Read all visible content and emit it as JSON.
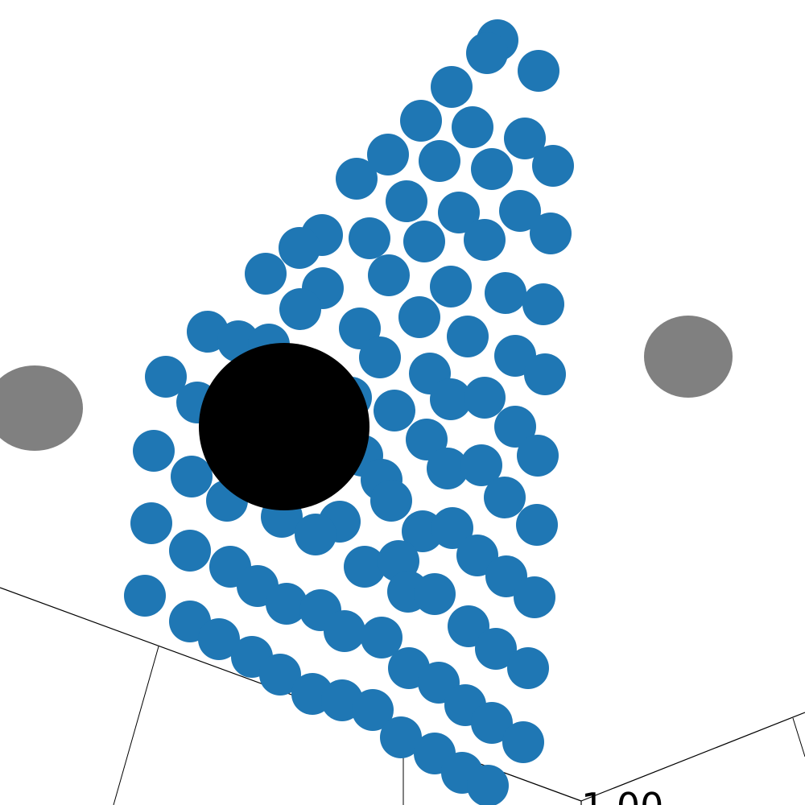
{
  "chart_data": {
    "type": "scatter",
    "projection": "3d",
    "partial_view": true,
    "grid": false,
    "legend": "none",
    "title": "",
    "colors": {
      "particles": "#1f77b4",
      "central_body": "#000000",
      "satellites": "#808080",
      "axes": "#000000"
    },
    "visible_tick_labels": [
      "1.00"
    ],
    "particle_rows": [
      [
        [
          618,
          50
        ],
        [
          605,
          66
        ],
        [
          669,
          88
        ]
      ],
      [
        [
          561,
          108
        ],
        [
          587,
          158
        ],
        [
          523,
          150
        ],
        [
          652,
          172
        ],
        [
          687,
          206
        ]
      ],
      [
        [
          482,
          192
        ],
        [
          546,
          200
        ],
        [
          611,
          210
        ],
        [
          443,
          222
        ]
      ],
      [
        [
          505,
          250
        ],
        [
          570,
          264
        ],
        [
          646,
          262
        ],
        [
          684,
          290
        ]
      ],
      [
        [
          400,
          292
        ],
        [
          459,
          296
        ],
        [
          527,
          300
        ],
        [
          602,
          298
        ],
        [
          372,
          308
        ]
      ],
      [
        [
          330,
          340
        ],
        [
          483,
          342
        ],
        [
          560,
          356
        ],
        [
          401,
          358
        ],
        [
          628,
          364
        ],
        [
          373,
          384
        ],
        [
          675,
          378
        ]
      ],
      [
        [
          521,
          394
        ],
        [
          258,
          412
        ],
        [
          296,
          424
        ],
        [
          447,
          408
        ],
        [
          581,
          418
        ],
        [
          334,
          428
        ]
      ],
      [
        [
          472,
          444
        ],
        [
          640,
          442
        ],
        [
          206,
          468
        ],
        [
          534,
          464
        ],
        [
          677,
          465
        ],
        [
          560,
          496
        ]
      ],
      [
        [
          245,
          500
        ],
        [
          602,
          494
        ],
        [
          436,
          494
        ],
        [
          490,
          510
        ],
        [
          640,
          530
        ]
      ],
      [
        [
          530,
          546
        ],
        [
          191,
          560
        ],
        [
          668,
          566
        ],
        [
          450,
          566
        ],
        [
          556,
          582
        ],
        [
          598,
          578
        ]
      ],
      [
        [
          238,
          592
        ],
        [
          474,
          596
        ],
        [
          282,
          622
        ],
        [
          486,
          622
        ],
        [
          627,
          618
        ]
      ],
      [
        [
          188,
          650
        ],
        [
          350,
          642
        ],
        [
          422,
          648
        ],
        [
          392,
          664
        ],
        [
          525,
          660
        ],
        [
          562,
          656
        ],
        [
          667,
          652
        ]
      ],
      [
        [
          236,
          684
        ],
        [
          593,
          690
        ],
        [
          286,
          704
        ],
        [
          453,
          704
        ],
        [
          495,
          697
        ]
      ],
      [
        [
          320,
          728
        ],
        [
          629,
          716
        ],
        [
          507,
          735
        ],
        [
          540,
          738
        ],
        [
          664,
          742
        ]
      ],
      [
        [
          180,
          740
        ],
        [
          356,
          750
        ],
        [
          398,
          758
        ],
        [
          236,
          772
        ],
        [
          428,
          784
        ],
        [
          582,
          778
        ]
      ],
      [
        [
          474,
          792
        ],
        [
          272,
          794
        ],
        [
          616,
          806
        ],
        [
          313,
          816
        ],
        [
          656,
          830
        ]
      ],
      [
        [
          508,
          830
        ],
        [
          348,
          838
        ],
        [
          545,
          848
        ],
        [
          388,
          862
        ],
        [
          425,
          870
        ],
        [
          578,
          876
        ]
      ],
      [
        [
          463,
          882
        ],
        [
          611,
          898
        ],
        [
          498,
          916
        ],
        [
          650,
          922
        ],
        [
          540,
          936
        ]
      ],
      [
        [
          574,
          960
        ],
        [
          606,
          976
        ]
      ]
    ]
  }
}
